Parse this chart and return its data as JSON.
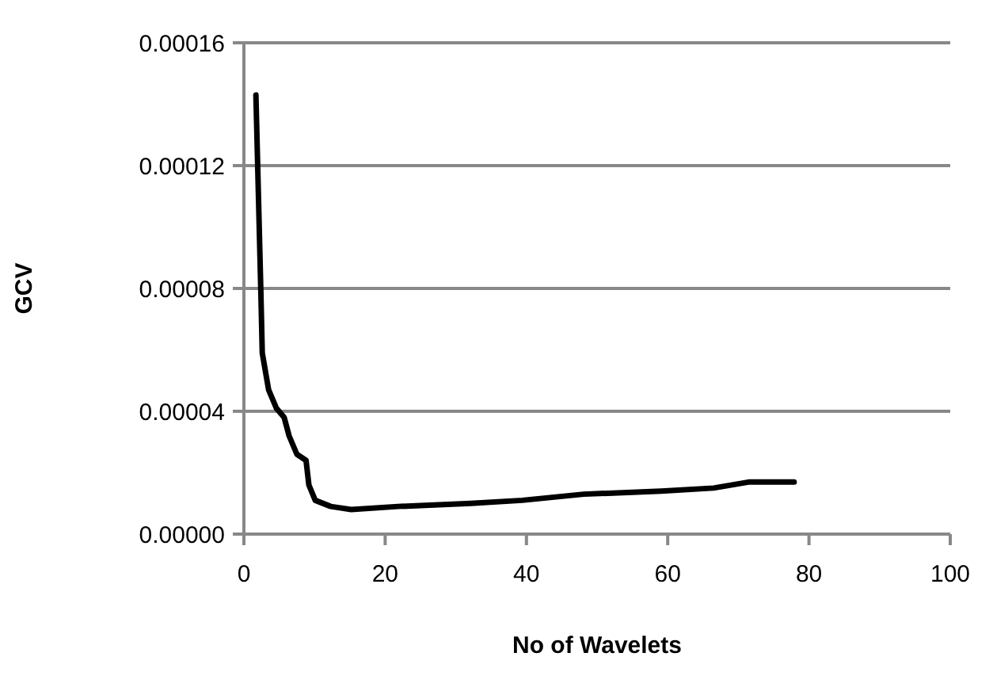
{
  "chart_data": {
    "type": "line",
    "xlabel": "No of Wavelets",
    "ylabel": "GCV",
    "x": [
      1.7,
      2.4,
      2.6,
      3.5,
      4.6,
      5.7,
      6.4,
      7.5,
      8.8,
      9.2,
      10.1,
      12.3,
      15.2,
      21.8,
      32.1,
      39.4,
      48.1,
      59.1,
      66.5,
      71.6,
      77.9
    ],
    "series": [
      {
        "color": "#000000",
        "values": [
          0.000143,
          7.9e-05,
          5.9e-05,
          4.7e-05,
          4.1e-05,
          3.8e-05,
          3.2e-05,
          2.6e-05,
          2.4e-05,
          1.6e-05,
          1.1e-05,
          9e-06,
          8e-06,
          9e-06,
          1e-05,
          1.1e-05,
          1.3e-05,
          1.4e-05,
          1.5e-05,
          1.7e-05,
          1.7e-05
        ]
      }
    ],
    "xlim": [
      0,
      100
    ],
    "xticks": [
      0,
      20,
      40,
      60,
      80,
      100
    ],
    "ylim": [
      0,
      0.00016
    ],
    "yticks": [
      {
        "value": 0,
        "label": "0.00000"
      },
      {
        "value": 4e-05,
        "label": "0.00004"
      },
      {
        "value": 8e-05,
        "label": "0.00008"
      },
      {
        "value": 0.00012,
        "label": "0.00012"
      },
      {
        "value": 0.00016,
        "label": "0.00016"
      }
    ],
    "grid": "y",
    "marker": "none",
    "line_style": "solid"
  }
}
